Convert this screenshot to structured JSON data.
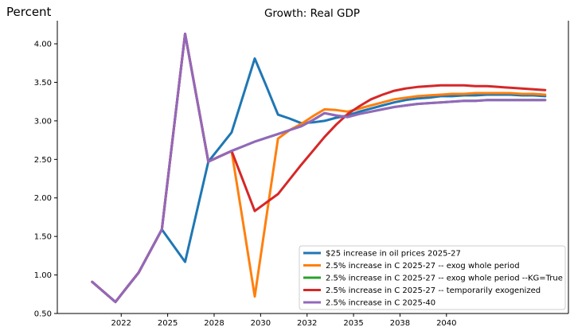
{
  "chart_data": {
    "type": "line",
    "title": "Growth: Real GDP",
    "ylabel": "Percent",
    "xlabel": "",
    "ylim": [
      0.5,
      4.3
    ],
    "xlim": [
      2019.0,
      2041.0
    ],
    "yticks": [
      0.5,
      1.0,
      1.5,
      2.0,
      2.5,
      3.0,
      3.5,
      4.0
    ],
    "ytick_labels": [
      "0.50",
      "1.00",
      "1.50",
      "2.00",
      "2.50",
      "3.00",
      "3.50",
      "4.00"
    ],
    "xticks": [
      2022,
      2025,
      2028,
      2030,
      2032,
      2035,
      2038,
      2040
    ],
    "xtick_positions": [
      2021.75,
      2023.75,
      2025.75,
      2027.75,
      2029.75,
      2031.75,
      2033.75,
      2035.75
    ],
    "xtick_labels": [
      "2022",
      "2025",
      "2028",
      "2030",
      "2032",
      "2035",
      "2038",
      "2040"
    ],
    "grid": false,
    "legend_position": "lower-right",
    "x": [
      2020.5,
      2021.0,
      2021.5,
      2022.0,
      2022.5,
      2023.0,
      2023.5,
      2024.0,
      2024.5,
      2025.0,
      2025.5,
      2026.0,
      2026.5,
      2027.0,
      2027.5,
      2028.0,
      2028.5,
      2029.0,
      2029.5,
      2030.0,
      2030.5,
      2031.0,
      2031.5,
      2032.0,
      2032.5,
      2033.0,
      2033.5,
      2034.0,
      2034.5,
      2035.0,
      2035.5,
      2036.0,
      2036.5,
      2037.0,
      2037.5,
      2038.0,
      2038.5,
      2039.0,
      2039.5,
      2040.0
    ],
    "series": [
      {
        "name": "$25 increase in oil prices 2025-27",
        "color": "#1f77b4",
        "values": [
          0.91,
          0.78,
          0.65,
          0.84,
          1.03,
          1.31,
          1.59,
          1.38,
          1.17,
          1.82,
          2.47,
          2.66,
          2.85,
          3.33,
          3.81,
          3.45,
          3.08,
          3.03,
          2.97,
          2.98,
          3.0,
          3.04,
          3.07,
          3.12,
          3.16,
          3.2,
          3.24,
          3.27,
          3.29,
          3.3,
          3.32,
          3.32,
          3.33,
          3.33,
          3.34,
          3.34,
          3.34,
          3.33,
          3.33,
          3.32
        ]
      },
      {
        "name": "2.5% increase in C 2025-27 -- exog whole period",
        "color": "#ff7f0e",
        "values": [
          0.91,
          0.78,
          0.65,
          0.84,
          1.03,
          1.31,
          1.59,
          2.86,
          4.13,
          3.3,
          2.47,
          2.54,
          2.61,
          1.67,
          0.72,
          1.75,
          2.77,
          2.88,
          2.96,
          3.06,
          3.15,
          3.14,
          3.12,
          3.16,
          3.2,
          3.24,
          3.28,
          3.3,
          3.32,
          3.33,
          3.34,
          3.35,
          3.35,
          3.36,
          3.36,
          3.36,
          3.36,
          3.35,
          3.35,
          3.34
        ]
      },
      {
        "name": "2.5% increase in C 2025-27 -- exog whole period --KG=True",
        "color": "#2ca02c",
        "values": [
          0.91,
          0.78,
          0.65,
          0.84,
          1.03,
          1.31,
          1.59,
          2.86,
          4.13,
          3.3,
          2.47,
          2.54,
          2.61,
          2.67,
          2.73,
          2.78,
          2.83,
          2.88,
          2.93,
          3.01,
          3.1,
          3.07,
          3.05,
          3.09,
          3.12,
          3.15,
          3.18,
          3.2,
          3.22,
          3.23,
          3.24,
          3.25,
          3.26,
          3.26,
          3.27,
          3.27,
          3.27,
          3.27,
          3.27,
          3.27
        ]
      },
      {
        "name": "2.5% increase in C 2025-27 -- temporarily exogenized",
        "color": "#d62728",
        "values": [
          0.91,
          0.78,
          0.65,
          0.84,
          1.03,
          1.31,
          1.59,
          2.86,
          4.13,
          3.3,
          2.47,
          2.54,
          2.61,
          2.22,
          1.83,
          1.94,
          2.05,
          2.24,
          2.43,
          2.61,
          2.79,
          2.95,
          3.09,
          3.19,
          3.28,
          3.34,
          3.39,
          3.42,
          3.44,
          3.45,
          3.46,
          3.46,
          3.46,
          3.45,
          3.45,
          3.44,
          3.43,
          3.42,
          3.41,
          3.4
        ]
      },
      {
        "name": "2.5% increase in C 2025-40",
        "color": "#9467bd",
        "values": [
          0.91,
          0.78,
          0.65,
          0.84,
          1.03,
          1.31,
          1.59,
          2.86,
          4.13,
          3.3,
          2.47,
          2.54,
          2.61,
          2.67,
          2.73,
          2.78,
          2.83,
          2.88,
          2.93,
          3.01,
          3.1,
          3.07,
          3.05,
          3.09,
          3.12,
          3.15,
          3.18,
          3.2,
          3.22,
          3.23,
          3.24,
          3.25,
          3.26,
          3.26,
          3.27,
          3.27,
          3.27,
          3.27,
          3.27,
          3.27
        ]
      }
    ]
  }
}
